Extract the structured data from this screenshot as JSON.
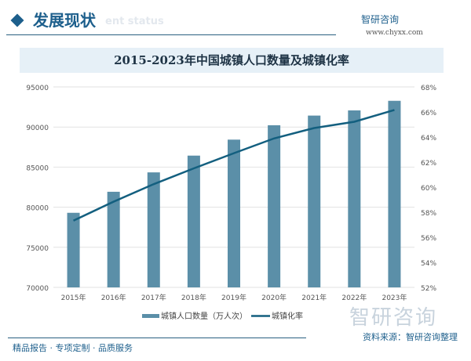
{
  "header": {
    "title": "发展现状",
    "subtitle": "ent status",
    "logo": "智研咨询",
    "url": "www.chyxx.com"
  },
  "chart_data": {
    "type": "bar+line",
    "title": "2015-2023年中国城镇人口数量及城镇化率",
    "categories": [
      "2015年",
      "2016年",
      "2017年",
      "2018年",
      "2019年",
      "2020年",
      "2021年",
      "2022年",
      "2023年"
    ],
    "series": [
      {
        "name": "城镇人口数量（万人次）",
        "type": "bar",
        "axis": "left",
        "color": "#5b8fa8",
        "values": [
          79302,
          81924,
          84343,
          86433,
          88426,
          90220,
          91425,
          92071,
          93267
        ]
      },
      {
        "name": "城镇化率",
        "type": "line",
        "axis": "right",
        "color": "#135f7f",
        "values": [
          57.33,
          58.84,
          60.24,
          61.5,
          62.71,
          63.89,
          64.72,
          65.22,
          66.16
        ]
      }
    ],
    "yleft": {
      "min": 70000,
      "max": 95000,
      "ticks": [
        "70000",
        "75000",
        "80000",
        "85000",
        "90000",
        "95000"
      ]
    },
    "yright": {
      "min": 52,
      "max": 68,
      "ticks": [
        "52%",
        "54%",
        "56%",
        "58%",
        "60%",
        "62%",
        "64%",
        "66%",
        "68%"
      ]
    },
    "grid": true,
    "legend": "bottom"
  },
  "footer": {
    "left": "精品报告 · 专项定制 · 品质服务",
    "source": "资料来源：智研咨询整理",
    "watermark": "智研咨询"
  }
}
